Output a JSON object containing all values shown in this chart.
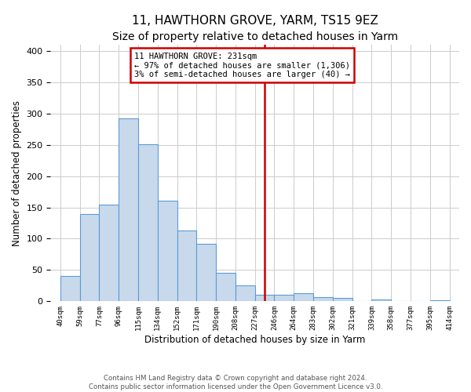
{
  "title": "11, HAWTHORN GROVE, YARM, TS15 9EZ",
  "subtitle": "Size of property relative to detached houses in Yarm",
  "xlabel": "Distribution of detached houses by size in Yarm",
  "ylabel": "Number of detached properties",
  "bar_labels": [
    "40sqm",
    "59sqm",
    "77sqm",
    "96sqm",
    "115sqm",
    "134sqm",
    "152sqm",
    "171sqm",
    "190sqm",
    "208sqm",
    "227sqm",
    "246sqm",
    "264sqm",
    "283sqm",
    "302sqm",
    "321sqm",
    "339sqm",
    "358sqm",
    "377sqm",
    "395sqm",
    "414sqm"
  ],
  "bar_values": [
    40,
    139,
    155,
    292,
    251,
    161,
    113,
    92,
    46,
    25,
    10,
    11,
    13,
    7,
    5,
    0,
    3,
    0,
    0,
    2
  ],
  "bar_color": "#c8d9ec",
  "bar_edge_color": "#5b9bd5",
  "vline_color": "#cc0000",
  "annotation_title": "11 HAWTHORN GROVE: 231sqm",
  "annotation_line1": "← 97% of detached houses are smaller (1,306)",
  "annotation_line2": "3% of semi-detached houses are larger (40) →",
  "annotation_box_color": "#cc0000",
  "ylim": [
    0,
    410
  ],
  "yticks": [
    0,
    50,
    100,
    150,
    200,
    250,
    300,
    350,
    400
  ],
  "footer1": "Contains HM Land Registry data © Crown copyright and database right 2024.",
  "footer2": "Contains public sector information licensed under the Open Government Licence v3.0.",
  "background_color": "#ffffff",
  "grid_color": "#cccccc",
  "title_fontsize": 11,
  "subtitle_fontsize": 10
}
